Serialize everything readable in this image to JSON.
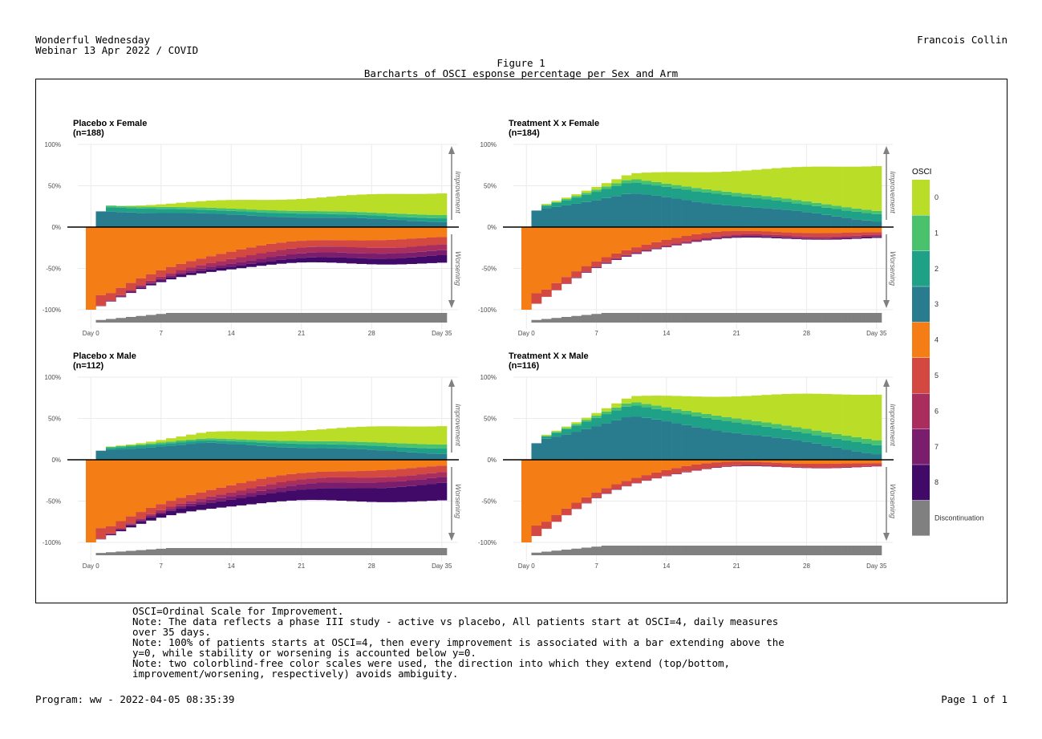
{
  "header": {
    "left_line1": "Wonderful Wednesday",
    "left_line2": "Webinar 13 Apr 2022 / COVID",
    "right": "Francois Collin"
  },
  "figure": {
    "label": "Figure 1",
    "title": "Barcharts of OSCI esponse percentage per Sex and Arm"
  },
  "notes": "OSCI=Ordinal Scale for Improvement.\nNote: The data reflects a phase III study - active vs placebo, All patients start at OSCI=4, daily measures\nover 35 days.\nNote: 100% of patients starts at OSCI=4, then every improvement is associated with a bar extending above the\ny=0, while stability or worsening is accounted below y=0.\nNote: two colorblind-free color scales were used, the direction into which they extend (top/bottom,\nimprovement/worsening, respectively) avoids ambiguity.",
  "footer": {
    "left": "Program: ww - 2022-04-05 08:35:39",
    "right": "Page 1 of 1"
  },
  "legend": {
    "title": "OSCI",
    "items": [
      {
        "label": "0",
        "color": "#BADE28"
      },
      {
        "label": "1",
        "color": "#4AC16D"
      },
      {
        "label": "2",
        "color": "#1FA188"
      },
      {
        "label": "3",
        "color": "#287C8E"
      },
      {
        "label": "4",
        "color": "#F57D15"
      },
      {
        "label": "5",
        "color": "#D44842"
      },
      {
        "label": "6",
        "color": "#A92E5E"
      },
      {
        "label": "7",
        "color": "#7A1D6D"
      },
      {
        "label": "8",
        "color": "#420A68"
      },
      {
        "label": "Discontinuation",
        "color": "#808080"
      }
    ]
  },
  "arrow_labels": {
    "up": "Improvement",
    "down": "Worsening"
  },
  "chart_data": [
    {
      "type": "bar",
      "title": "Placebo x Female",
      "subtitle": "(n=188)",
      "x": [
        0,
        1,
        2,
        3,
        4,
        5,
        6,
        7,
        8,
        9,
        10,
        11,
        12,
        13,
        14,
        15,
        16,
        17,
        18,
        19,
        20,
        21,
        22,
        23,
        24,
        25,
        26,
        27,
        28,
        29,
        30,
        31,
        32,
        33,
        34,
        35
      ],
      "ylim": [
        -100,
        100
      ],
      "y_ticks": [
        "-100%",
        "-50%",
        "0%",
        "50%",
        "100%"
      ],
      "x_ticks": [
        {
          "x": 0,
          "label": "Day 0"
        },
        {
          "x": 7,
          "label": "7"
        },
        {
          "x": 14,
          "label": "14"
        },
        {
          "x": 21,
          "label": "21"
        },
        {
          "x": 28,
          "label": "28"
        },
        {
          "x": 35,
          "label": "Day 35"
        }
      ],
      "above": {
        "3": 20,
        "2": 6,
        "1": 3,
        "0": 0,
        "3_end": 7,
        "2_end": 4,
        "1_end": 4,
        "0_end": 27
      },
      "below": {
        "4": 100,
        "4_end": 13,
        "5_end": 9,
        "6_end": 7,
        "7_end": 6,
        "8_end": 9
      },
      "below_total_end": 44,
      "discontinuation_max": 12
    },
    {
      "type": "bar",
      "title": "Treatment X x Female",
      "subtitle": "(n=184)",
      "x": [
        0,
        1,
        2,
        3,
        4,
        5,
        6,
        7,
        8,
        9,
        10,
        11,
        12,
        13,
        14,
        15,
        16,
        17,
        18,
        19,
        20,
        21,
        22,
        23,
        24,
        25,
        26,
        27,
        28,
        29,
        30,
        31,
        32,
        33,
        34,
        35
      ],
      "ylim": [
        -100,
        100
      ],
      "y_ticks": [
        "-100%",
        "-50%",
        "0%",
        "50%",
        "100%"
      ],
      "x_ticks": [
        {
          "x": 0,
          "label": "Day 0"
        },
        {
          "x": 7,
          "label": "7"
        },
        {
          "x": 14,
          "label": "14"
        },
        {
          "x": 21,
          "label": "21"
        },
        {
          "x": 28,
          "label": "28"
        },
        {
          "x": 35,
          "label": "Day 35"
        }
      ],
      "above": {
        "3_end": 8,
        "2_end": 8,
        "1_end": 4,
        "0_end": 55
      },
      "below": {
        "4": 100,
        "4_end": 7,
        "5_end": 3,
        "6_end": 2,
        "7_end": 1,
        "8_end": 1
      },
      "below_total_end": 14,
      "discontinuation_max": 12
    },
    {
      "type": "bar",
      "title": "Placebo x Male",
      "subtitle": "(n=112)",
      "x": [
        0,
        1,
        2,
        3,
        4,
        5,
        6,
        7,
        8,
        9,
        10,
        11,
        12,
        13,
        14,
        15,
        16,
        17,
        18,
        19,
        20,
        21,
        22,
        23,
        24,
        25,
        26,
        27,
        28,
        29,
        30,
        31,
        32,
        33,
        34,
        35
      ],
      "ylim": [
        -100,
        100
      ],
      "y_ticks": [
        "-100%",
        "-50%",
        "0%",
        "50%",
        "100%"
      ],
      "x_ticks": [
        {
          "x": 0,
          "label": "Day 0"
        },
        {
          "x": 7,
          "label": "7"
        },
        {
          "x": 14,
          "label": "14"
        },
        {
          "x": 21,
          "label": "21"
        },
        {
          "x": 28,
          "label": "28"
        },
        {
          "x": 35,
          "label": "Day 35"
        }
      ],
      "above": {
        "3_end": 8,
        "2_end": 6,
        "1_end": 5,
        "0_end": 23
      },
      "below": {
        "4": 100,
        "4_end": 8,
        "5_end": 8,
        "6_end": 6,
        "7_end": 7,
        "8_end": 21
      },
      "below_total_end": 50,
      "discontinuation_max": 9
    },
    {
      "type": "bar",
      "title": "Treatment X x Male",
      "subtitle": "(n=116)",
      "x": [
        0,
        1,
        2,
        3,
        4,
        5,
        6,
        7,
        8,
        9,
        10,
        11,
        12,
        13,
        14,
        15,
        16,
        17,
        18,
        19,
        20,
        21,
        22,
        23,
        24,
        25,
        26,
        27,
        28,
        29,
        30,
        31,
        32,
        33,
        34,
        35
      ],
      "ylim": [
        -100,
        100
      ],
      "y_ticks": [
        "-100%",
        "-50%",
        "0%",
        "50%",
        "100%"
      ],
      "x_ticks": [
        {
          "x": 0,
          "label": "Day 0"
        },
        {
          "x": 7,
          "label": "7"
        },
        {
          "x": 14,
          "label": "14"
        },
        {
          "x": 21,
          "label": "21"
        },
        {
          "x": 28,
          "label": "28"
        },
        {
          "x": 35,
          "label": "Day 35"
        }
      ],
      "above": {
        "3_end": 8,
        "2_end": 10,
        "1_end": 6,
        "0_end": 56
      },
      "below": {
        "4": 100,
        "4_end": 5,
        "5_end": 3,
        "6_end": 1,
        "7_end": 0,
        "8_end": 0
      },
      "below_total_end": 9,
      "discontinuation_max": 12
    }
  ]
}
